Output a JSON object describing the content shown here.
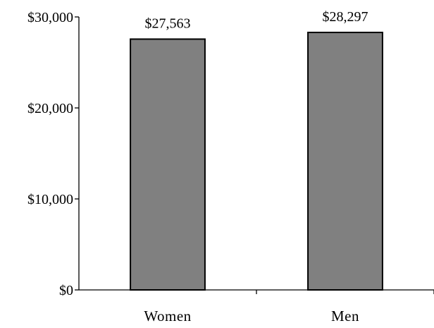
{
  "chart_data": {
    "type": "bar",
    "categories": [
      "Women",
      "Men"
    ],
    "values": [
      27563,
      28297
    ],
    "value_labels": [
      "$27,563",
      "$28,297"
    ],
    "ylim": [
      0,
      30000
    ],
    "y_ticks": [
      {
        "value": 0,
        "label": "$0"
      },
      {
        "value": 10000,
        "label": "$10,000"
      },
      {
        "value": 20000,
        "label": "$20,000"
      },
      {
        "value": 30000,
        "label": "$30,000"
      }
    ],
    "bar_color": "#808080",
    "grid": false,
    "title": "",
    "xlabel": "",
    "ylabel": ""
  }
}
